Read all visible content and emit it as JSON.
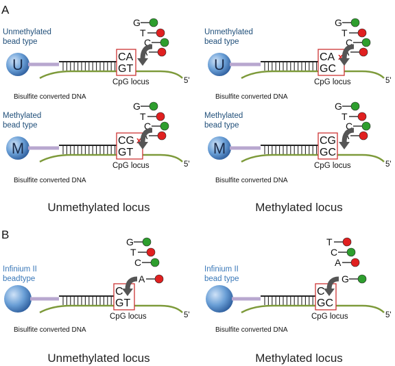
{
  "colors": {
    "bead_text": "#1f4e79",
    "infinium_text": "#3a78b8",
    "strand": "#7d9a3a",
    "linker": "#b8a7cf",
    "box": "#cc3333",
    "x_mark": "#dd2222",
    "arrow": "#555555",
    "green_dot": "#2e9e2e",
    "red_dot": "#e02020"
  },
  "panel_a": {
    "letter": "A",
    "cells": [
      {
        "bead_label_1": "Unmethylated",
        "bead_label_2": "bead type",
        "bead_letter": "U",
        "top_bases": "CA",
        "bottom_bases": "GT",
        "x_mark": "",
        "locus_label": "CpG locus",
        "dna_label": "Bisulfite converted DNA",
        "end_label": "5'",
        "nucleotides": [
          {
            "base": "G",
            "color": "green"
          },
          {
            "base": "T",
            "color": "red"
          },
          {
            "base": "C",
            "color": "green"
          },
          {
            "base": "A",
            "color": "red"
          }
        ]
      },
      {
        "bead_label_1": "Unmethylated",
        "bead_label_2": "bead type",
        "bead_letter": "U",
        "top_bases": "CA",
        "bottom_bases": "GC",
        "x_mark": "x",
        "locus_label": "CpG locus",
        "dna_label": "Bisulfite converted DNA",
        "end_label": "5'",
        "nucleotides": [
          {
            "base": "G",
            "color": "green"
          },
          {
            "base": "T",
            "color": "red"
          },
          {
            "base": "C",
            "color": "green"
          },
          {
            "base": "A",
            "color": "red"
          }
        ]
      },
      {
        "bead_label_1": "Methylated",
        "bead_label_2": "bead type",
        "bead_letter": "M",
        "top_bases": "CG",
        "bottom_bases": "GT",
        "x_mark": "x",
        "locus_label": "CpG locus",
        "dna_label": "Bisulfite converted DNA",
        "end_label": "5'",
        "nucleotides": [
          {
            "base": "G",
            "color": "green"
          },
          {
            "base": "T",
            "color": "red"
          },
          {
            "base": "C",
            "color": "green"
          },
          {
            "base": "A",
            "color": "red"
          }
        ]
      },
      {
        "bead_label_1": "Methylated",
        "bead_label_2": "bead type",
        "bead_letter": "M",
        "top_bases": "CG",
        "bottom_bases": "GC",
        "x_mark": "",
        "locus_label": "CpG locus",
        "dna_label": "Bisulfite converted DNA",
        "end_label": "5'",
        "nucleotides": [
          {
            "base": "G",
            "color": "green"
          },
          {
            "base": "T",
            "color": "red"
          },
          {
            "base": "C",
            "color": "green"
          },
          {
            "base": "A",
            "color": "red"
          }
        ]
      }
    ],
    "caption_left": "Unmethylated locus",
    "caption_right": "Methylated locus"
  },
  "panel_b": {
    "letter": "B",
    "cells": [
      {
        "bead_label_1": "Infinium II",
        "bead_label_2": "beadtype",
        "top_bases": "C",
        "bottom_bases": "GT",
        "locus_label": "CpG locus",
        "dna_label": "Bisulfite converted DNA",
        "end_label": "5'",
        "nucleotides": [
          {
            "base": "G",
            "color": "green"
          },
          {
            "base": "T",
            "color": "red"
          },
          {
            "base": "C",
            "color": "green"
          }
        ],
        "incorporated": {
          "base": "A",
          "color": "red"
        }
      },
      {
        "bead_label_1": "Infinium II",
        "bead_label_2": "bead type",
        "top_bases": "C",
        "bottom_bases": "GC",
        "locus_label": "CpG locus",
        "dna_label": "Bisulfite converted DNA",
        "end_label": "5'",
        "nucleotides": [
          {
            "base": "T",
            "color": "red"
          },
          {
            "base": "C",
            "color": "green"
          },
          {
            "base": "A",
            "color": "red"
          }
        ],
        "incorporated": {
          "base": "G",
          "color": "green"
        }
      }
    ],
    "caption_left": "Unmethylated locus",
    "caption_right": "Methylated locus"
  }
}
